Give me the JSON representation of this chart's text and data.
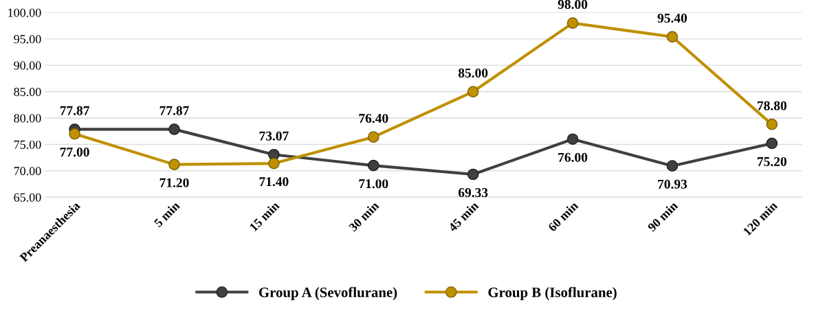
{
  "chart_data": {
    "type": "line",
    "categories": [
      "Preanaesthesia",
      "5 min",
      "15 min",
      "30 min",
      "45 min",
      "60 min",
      "90 min",
      "120 min"
    ],
    "series": [
      {
        "name": "Group A (Sevoflurane)",
        "color": "#404040",
        "values": [
          77.87,
          77.87,
          73.07,
          71.0,
          69.33,
          76.0,
          70.93,
          75.2
        ],
        "value_labels": [
          "77.87",
          "77.87",
          "73.07",
          "71.00",
          "69.33",
          "76.00",
          "70.93",
          "75.20"
        ]
      },
      {
        "name": "Group B (Isoflurane)",
        "color": "#bf9000",
        "values": [
          77.0,
          71.2,
          71.4,
          76.4,
          85.0,
          98.0,
          95.4,
          78.8
        ],
        "value_labels": [
          "77.00",
          "71.20",
          "71.40",
          "76.40",
          "85.00",
          "98.00",
          "95.40",
          "78.80"
        ]
      }
    ],
    "ylim": [
      65,
      100
    ],
    "yticks": [
      {
        "value": 65,
        "label": "65.00"
      },
      {
        "value": 70,
        "label": "70.00"
      },
      {
        "value": 75,
        "label": "75.00"
      },
      {
        "value": 80,
        "label": "80.00"
      },
      {
        "value": 85,
        "label": "85.00"
      },
      {
        "value": 90,
        "label": "90.00"
      },
      {
        "value": 95,
        "label": "95.00"
      },
      {
        "value": 100,
        "label": "100.00"
      }
    ],
    "grid": "y",
    "legend": "bottom",
    "marker": "circle",
    "line_style": "solid"
  }
}
